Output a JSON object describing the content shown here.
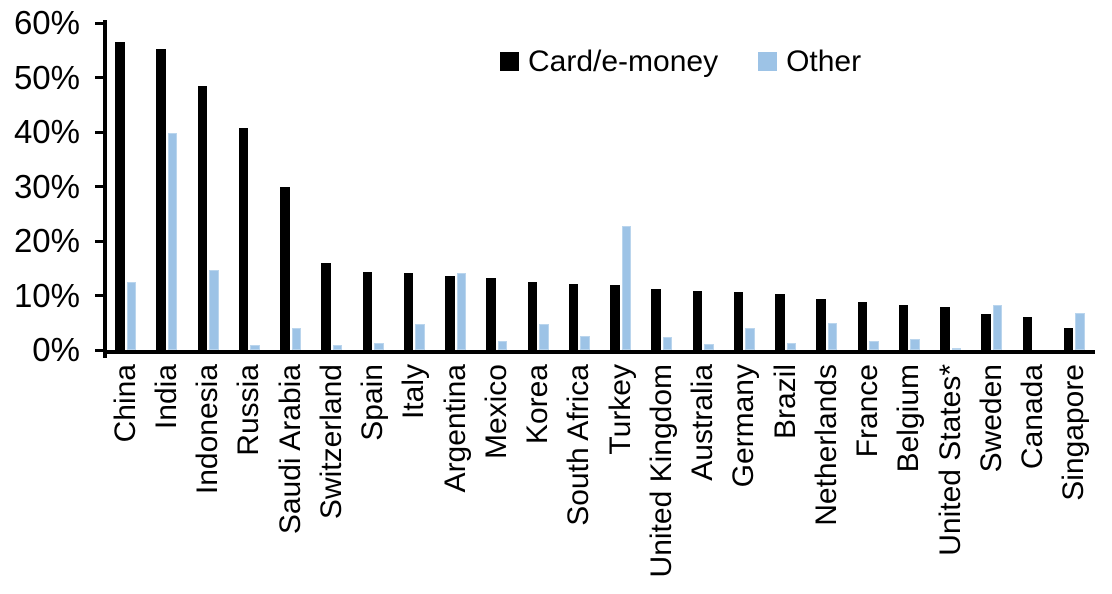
{
  "chart_data": {
    "type": "bar",
    "title": "",
    "xlabel": "",
    "ylabel": "",
    "ylim": [
      0,
      60
    ],
    "ytick_step": 10,
    "ytick_suffix": "%",
    "grid": false,
    "legend_position": "top-center",
    "background": "#ffffff",
    "categories": [
      "China",
      "India",
      "Indonesia",
      "Russia",
      "Saudi Arabia",
      "Switzerland",
      "Spain",
      "Italy",
      "Argentina",
      "Mexico",
      "Korea",
      "South Africa",
      "Turkey",
      "United Kingdom",
      "Australia",
      "Germany",
      "Brazil",
      "Netherlands",
      "France",
      "Belgium",
      "United States*",
      "Sweden",
      "Canada",
      "Singapore"
    ],
    "series": [
      {
        "name": "Card/e-money",
        "color": "#000000",
        "values": [
          56.5,
          55.3,
          48.5,
          40.8,
          30.0,
          15.9,
          14.4,
          14.2,
          13.6,
          13.2,
          12.5,
          12.1,
          11.9,
          11.2,
          10.9,
          10.7,
          10.2,
          9.4,
          8.8,
          8.3,
          7.9,
          6.6,
          6.1,
          4.0
        ]
      },
      {
        "name": "Other",
        "color": "#9dc3e6",
        "values": [
          12.5,
          39.9,
          14.6,
          1.0,
          4.1,
          0.9,
          1.3,
          4.8,
          14.2,
          1.6,
          4.8,
          2.6,
          22.7,
          2.4,
          1.1,
          4.1,
          1.3,
          5.0,
          1.6,
          2.1,
          0.3,
          8.2,
          0,
          6.7
        ]
      }
    ]
  }
}
